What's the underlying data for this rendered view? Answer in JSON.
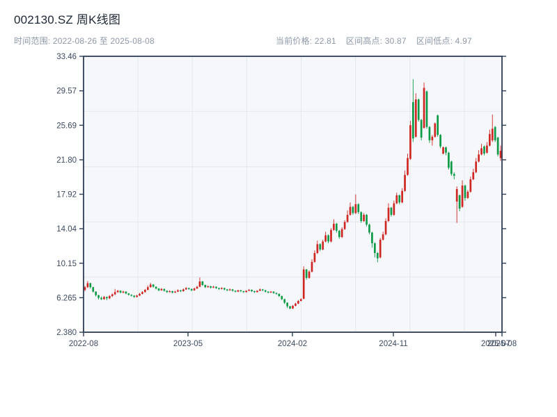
{
  "header": {
    "title": "002130.SZ 周K线图",
    "time_range": "时间范围: 2022-08-26 至 2025-08-08",
    "stats": [
      "当前价格: 22.81",
      "区间高点: 30.87",
      "区间低点: 4.97"
    ]
  },
  "chart_data": {
    "type": "candlestick",
    "symbol": "002130.SZ",
    "period": "weekly",
    "title": "002130.SZ 周K线图",
    "start_date": "2022-08-26",
    "end_date": "2025-08-08",
    "current_price": 22.81,
    "range_high": 30.87,
    "range_low": 4.97,
    "ylim": [
      2.38,
      33.46
    ],
    "y_ticks": [
      "33.46",
      "29.57",
      "25.69",
      "21.80",
      "17.92",
      "14.04",
      "10.15",
      "6.265",
      "2.380"
    ],
    "x_ticks": [
      {
        "label": "2022-08",
        "pos": 0.0
      },
      {
        "label": "2023-05",
        "pos": 0.2496
      },
      {
        "label": "2024-02",
        "pos": 0.4992
      },
      {
        "label": "2024-11",
        "pos": 0.7404
      },
      {
        "label": "2025-07",
        "pos": 0.985
      },
      {
        "label": "2025-08",
        "pos": 1.0
      }
    ],
    "legend_position": "none",
    "grid": true,
    "colors": {
      "up": "#cf2723",
      "down": "#0f9a47",
      "plot_bg": "#f5f7fa",
      "grid": "#e4e8ef",
      "spine": "#2e3d55"
    },
    "candles_ohlc": [
      [
        7.15,
        7.6,
        7.0,
        7.45
      ],
      [
        7.45,
        8.15,
        7.35,
        7.9
      ],
      [
        7.9,
        7.95,
        7.3,
        7.45
      ],
      [
        7.45,
        7.5,
        6.85,
        6.95
      ],
      [
        6.95,
        7.0,
        6.4,
        6.55
      ],
      [
        6.55,
        6.6,
        6.05,
        6.25
      ],
      [
        6.25,
        6.4,
        6.0,
        6.1
      ],
      [
        6.1,
        6.45,
        6.05,
        6.35
      ],
      [
        6.35,
        6.4,
        5.98,
        6.2
      ],
      [
        6.2,
        6.55,
        6.1,
        6.45
      ],
      [
        6.45,
        6.75,
        6.35,
        6.65
      ],
      [
        6.65,
        7.25,
        6.55,
        6.9
      ],
      [
        6.9,
        7.15,
        6.8,
        7.05
      ],
      [
        7.05,
        7.1,
        6.75,
        6.85
      ],
      [
        6.85,
        7.05,
        6.75,
        6.95
      ],
      [
        6.95,
        7.0,
        6.65,
        6.75
      ],
      [
        6.75,
        6.8,
        6.5,
        6.6
      ],
      [
        6.6,
        6.65,
        6.4,
        6.5
      ],
      [
        6.5,
        6.55,
        6.25,
        6.35
      ],
      [
        6.35,
        6.6,
        6.3,
        6.5
      ],
      [
        6.5,
        6.8,
        6.45,
        6.7
      ],
      [
        6.7,
        7.0,
        6.65,
        6.9
      ],
      [
        6.9,
        7.25,
        6.85,
        7.15
      ],
      [
        7.15,
        7.65,
        7.1,
        7.45
      ],
      [
        7.45,
        7.95,
        7.4,
        7.75
      ],
      [
        7.75,
        7.8,
        7.4,
        7.5
      ],
      [
        7.5,
        7.55,
        7.2,
        7.3
      ],
      [
        7.3,
        7.35,
        7.0,
        7.1
      ],
      [
        7.1,
        7.35,
        7.05,
        7.25
      ],
      [
        7.25,
        7.3,
        6.95,
        7.05
      ],
      [
        7.05,
        7.1,
        6.8,
        6.9
      ],
      [
        6.9,
        7.1,
        6.85,
        7.0
      ],
      [
        7.0,
        7.05,
        6.75,
        6.85
      ],
      [
        6.85,
        7.05,
        6.8,
        6.95
      ],
      [
        6.95,
        7.2,
        6.9,
        7.1
      ],
      [
        7.1,
        7.15,
        6.9,
        7.0
      ],
      [
        7.0,
        7.3,
        6.95,
        7.2
      ],
      [
        7.2,
        7.45,
        7.15,
        7.35
      ],
      [
        7.35,
        7.4,
        7.15,
        7.25
      ],
      [
        7.25,
        7.3,
        7.0,
        7.1
      ],
      [
        7.1,
        7.4,
        7.05,
        7.3
      ],
      [
        7.3,
        7.6,
        7.25,
        7.5
      ],
      [
        7.5,
        8.55,
        7.45,
        8.1
      ],
      [
        8.1,
        8.15,
        7.6,
        7.7
      ],
      [
        7.7,
        7.75,
        7.35,
        7.45
      ],
      [
        7.45,
        7.65,
        7.4,
        7.55
      ],
      [
        7.55,
        7.6,
        7.3,
        7.4
      ],
      [
        7.4,
        7.6,
        7.35,
        7.5
      ],
      [
        7.5,
        7.55,
        7.25,
        7.35
      ],
      [
        7.35,
        7.4,
        7.15,
        7.25
      ],
      [
        7.25,
        7.45,
        7.2,
        7.35
      ],
      [
        7.35,
        7.4,
        7.1,
        7.2
      ],
      [
        7.2,
        7.25,
        7.0,
        7.1
      ],
      [
        7.1,
        7.3,
        7.05,
        7.2
      ],
      [
        7.2,
        7.25,
        6.95,
        7.05
      ],
      [
        7.05,
        7.1,
        6.85,
        6.95
      ],
      [
        6.95,
        7.15,
        6.9,
        7.1
      ],
      [
        7.1,
        7.15,
        6.9,
        7.0
      ],
      [
        7.0,
        7.05,
        6.8,
        6.9
      ],
      [
        6.9,
        7.1,
        6.85,
        7.05
      ],
      [
        7.05,
        7.25,
        7.0,
        7.15
      ],
      [
        7.15,
        7.2,
        6.9,
        7.0
      ],
      [
        7.0,
        7.05,
        6.8,
        6.9
      ],
      [
        6.9,
        7.1,
        6.85,
        7.05
      ],
      [
        7.05,
        7.3,
        7.0,
        7.2
      ],
      [
        7.2,
        7.25,
        7.0,
        7.1
      ],
      [
        7.1,
        7.15,
        6.85,
        6.95
      ],
      [
        6.95,
        7.0,
        6.75,
        6.85
      ],
      [
        6.85,
        7.0,
        6.8,
        6.95
      ],
      [
        6.95,
        7.0,
        6.7,
        6.8
      ],
      [
        6.8,
        6.85,
        6.6,
        6.7
      ],
      [
        6.7,
        6.75,
        6.35,
        6.45
      ],
      [
        6.45,
        6.5,
        6.0,
        6.1
      ],
      [
        6.1,
        6.15,
        5.55,
        5.7
      ],
      [
        5.7,
        5.75,
        5.1,
        5.3
      ],
      [
        5.3,
        5.35,
        4.97,
        5.05
      ],
      [
        5.05,
        5.45,
        5.0,
        5.35
      ],
      [
        5.35,
        5.7,
        5.3,
        5.6
      ],
      [
        5.6,
        6.0,
        5.55,
        5.9
      ],
      [
        5.9,
        6.2,
        5.85,
        6.1
      ],
      [
        6.15,
        9.8,
        6.1,
        9.45
      ],
      [
        9.45,
        9.5,
        8.3,
        8.5
      ],
      [
        8.5,
        9.35,
        8.4,
        9.2
      ],
      [
        9.2,
        10.6,
        9.1,
        10.3
      ],
      [
        10.3,
        11.6,
        10.2,
        11.3
      ],
      [
        11.3,
        12.7,
        11.2,
        12.3
      ],
      [
        12.3,
        12.4,
        11.5,
        11.7
      ],
      [
        11.7,
        12.8,
        11.6,
        12.6
      ],
      [
        12.6,
        13.7,
        12.5,
        13.3
      ],
      [
        13.3,
        13.4,
        12.4,
        12.6
      ],
      [
        12.6,
        14.1,
        12.5,
        13.9
      ],
      [
        13.9,
        15.1,
        13.8,
        14.6
      ],
      [
        14.6,
        14.7,
        13.6,
        13.8
      ],
      [
        13.8,
        13.9,
        12.9,
        13.1
      ],
      [
        13.1,
        14.2,
        13.0,
        14.0
      ],
      [
        14.0,
        15.0,
        13.9,
        14.8
      ],
      [
        14.8,
        16.1,
        14.7,
        15.6
      ],
      [
        15.6,
        17.0,
        15.5,
        16.5
      ],
      [
        16.5,
        16.6,
        15.6,
        15.8
      ],
      [
        15.8,
        17.9,
        15.7,
        16.8
      ],
      [
        16.8,
        16.9,
        15.7,
        15.9
      ],
      [
        15.9,
        16.0,
        14.7,
        14.9
      ],
      [
        14.9,
        15.8,
        14.8,
        15.6
      ],
      [
        15.6,
        15.7,
        14.3,
        14.5
      ],
      [
        14.5,
        14.6,
        13.4,
        13.6
      ],
      [
        13.6,
        13.7,
        11.9,
        12.4
      ],
      [
        12.4,
        12.5,
        10.8,
        11.3
      ],
      [
        11.3,
        11.4,
        10.25,
        10.7
      ],
      [
        10.8,
        13.0,
        10.7,
        12.8
      ],
      [
        12.8,
        13.7,
        12.7,
        13.4
      ],
      [
        13.4,
        15.2,
        13.3,
        14.9
      ],
      [
        14.9,
        16.9,
        14.8,
        16.4
      ],
      [
        16.4,
        16.5,
        15.4,
        15.6
      ],
      [
        15.6,
        17.2,
        15.5,
        16.9
      ],
      [
        16.9,
        18.1,
        16.8,
        17.8
      ],
      [
        17.8,
        17.9,
        16.8,
        17.0
      ],
      [
        17.0,
        18.6,
        16.9,
        18.3
      ],
      [
        18.3,
        20.6,
        18.2,
        20.1
      ],
      [
        20.1,
        22.5,
        20.0,
        22.0
      ],
      [
        21.9,
        26.2,
        21.8,
        25.7
      ],
      [
        28.3,
        30.87,
        23.8,
        24.2
      ],
      [
        24.4,
        29.3,
        24.3,
        28.6
      ],
      [
        28.6,
        28.7,
        26.1,
        26.3
      ],
      [
        26.3,
        26.4,
        24.0,
        24.3
      ],
      [
        25.4,
        30.5,
        25.3,
        29.9
      ],
      [
        29.5,
        29.6,
        25.3,
        25.5
      ],
      [
        25.5,
        25.6,
        23.7,
        24.0
      ],
      [
        24.0,
        24.6,
        23.4,
        24.4
      ],
      [
        24.4,
        26.0,
        24.3,
        25.9
      ],
      [
        26.8,
        26.9,
        24.4,
        24.6
      ],
      [
        24.6,
        24.7,
        23.1,
        23.3
      ],
      [
        22.5,
        23.3,
        22.4,
        23.2
      ],
      [
        23.2,
        23.3,
        22.3,
        22.6
      ],
      [
        22.6,
        22.7,
        20.7,
        20.9
      ],
      [
        21.6,
        21.7,
        20.0,
        20.2
      ],
      [
        20.2,
        20.4,
        19.6,
        20.0
      ],
      [
        17.1,
        18.8,
        14.7,
        18.5
      ],
      [
        17.8,
        17.9,
        16.0,
        16.3
      ],
      [
        16.5,
        19.5,
        16.4,
        18.9
      ],
      [
        18.9,
        19.0,
        17.2,
        17.5
      ],
      [
        17.5,
        18.4,
        17.4,
        18.2
      ],
      [
        18.2,
        19.9,
        18.1,
        19.6
      ],
      [
        19.6,
        20.8,
        19.5,
        20.4
      ],
      [
        20.4,
        22.0,
        20.3,
        21.6
      ],
      [
        21.6,
        22.9,
        21.5,
        22.4
      ],
      [
        22.4,
        23.6,
        22.3,
        23.1
      ],
      [
        23.3,
        23.4,
        22.3,
        22.5
      ],
      [
        22.6,
        23.8,
        22.5,
        23.4
      ],
      [
        23.4,
        25.2,
        23.3,
        24.7
      ],
      [
        24.0,
        26.9,
        23.8,
        25.3
      ],
      [
        25.5,
        25.6,
        23.8,
        24.0
      ],
      [
        24.3,
        24.4,
        22.2,
        22.4
      ],
      [
        22.0,
        23.4,
        21.7,
        22.81
      ]
    ]
  }
}
